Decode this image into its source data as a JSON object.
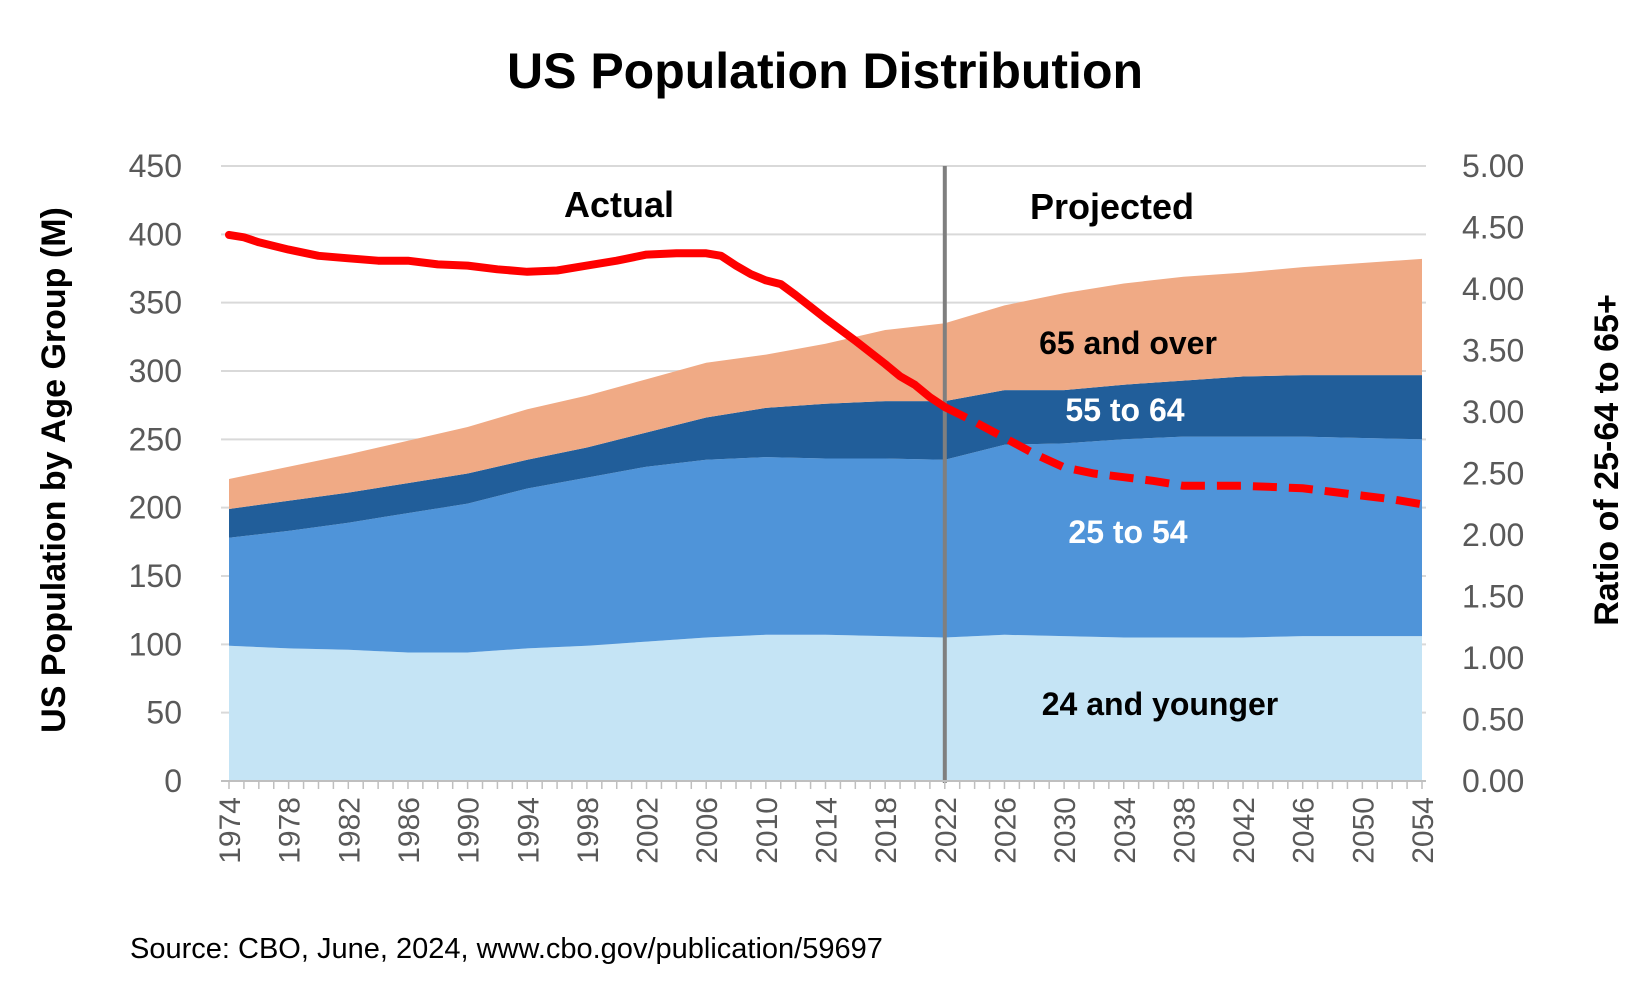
{
  "chart_data": {
    "type": "area",
    "title": "US Population Distribution",
    "ylabel_left": "US Population by Age Group (M)",
    "ylabel_right": "Ratio of 25-64 to 65+",
    "ylim_left": [
      0,
      450
    ],
    "ylim_right": [
      0,
      5
    ],
    "yticks_left": [
      "0",
      "50",
      "100",
      "150",
      "200",
      "250",
      "300",
      "350",
      "400",
      "450"
    ],
    "yticks_right": [
      "0.00",
      "0.50",
      "1.00",
      "1.50",
      "2.00",
      "2.50",
      "3.00",
      "3.50",
      "4.00",
      "4.50",
      "5.00"
    ],
    "x": [
      1974,
      1978,
      1982,
      1986,
      1990,
      1994,
      1998,
      2002,
      2006,
      2010,
      2014,
      2018,
      2022,
      2026,
      2030,
      2034,
      2038,
      2042,
      2046,
      2050,
      2054
    ],
    "xticks": [
      "1974",
      "1978",
      "1982",
      "1986",
      "1990",
      "1994",
      "1998",
      "2002",
      "2006",
      "2010",
      "2014",
      "2018",
      "2022",
      "2026",
      "2030",
      "2034",
      "2038",
      "2042",
      "2046",
      "2050",
      "2054"
    ],
    "stacked_series": [
      {
        "name": "24 and younger",
        "color": "#c5e4f5",
        "values": [
          99,
          97,
          96,
          94,
          94,
          97,
          99,
          102,
          105,
          107,
          107,
          106,
          105,
          107,
          106,
          105,
          105,
          105,
          106,
          106,
          106
        ]
      },
      {
        "name": "25 to 54",
        "color": "#4f94d9",
        "values": [
          79,
          86,
          93,
          102,
          109,
          117,
          123,
          128,
          130,
          130,
          129,
          130,
          130,
          139,
          141,
          145,
          147,
          147,
          146,
          145,
          144
        ]
      },
      {
        "name": "55 to 64",
        "color": "#215e9a",
        "values": [
          21,
          22,
          22,
          22,
          22,
          21,
          22,
          25,
          31,
          36,
          40,
          42,
          43,
          40,
          39,
          40,
          41,
          44,
          45,
          46,
          47
        ]
      },
      {
        "name": "65 and over",
        "color": "#f0aa85",
        "values": [
          22,
          25,
          28,
          31,
          34,
          37,
          38,
          39,
          40,
          39,
          44,
          52,
          57,
          62,
          71,
          74,
          76,
          76,
          79,
          82,
          85
        ]
      }
    ],
    "ratio_series": {
      "name": "Ratio of 25-64 to 65+",
      "color": "#ff0000",
      "x": [
        1974,
        1975,
        1976,
        1978,
        1980,
        1982,
        1984,
        1986,
        1988,
        1990,
        1992,
        1994,
        1996,
        1998,
        2000,
        2002,
        2004,
        2006,
        2007,
        2008,
        2009,
        2010,
        2011,
        2012,
        2014,
        2016,
        2018,
        2019,
        2020,
        2021,
        2022,
        2024,
        2026,
        2028,
        2030,
        2032,
        2034,
        2036,
        2038,
        2040,
        2042,
        2044,
        2046,
        2048,
        2050,
        2052,
        2054
      ],
      "values": [
        4.44,
        4.42,
        4.38,
        4.32,
        4.27,
        4.25,
        4.23,
        4.23,
        4.2,
        4.19,
        4.16,
        4.14,
        4.15,
        4.19,
        4.23,
        4.28,
        4.29,
        4.29,
        4.27,
        4.19,
        4.12,
        4.07,
        4.04,
        3.95,
        3.76,
        3.58,
        3.39,
        3.29,
        3.22,
        3.12,
        3.04,
        2.92,
        2.79,
        2.66,
        2.55,
        2.5,
        2.47,
        2.44,
        2.4,
        2.4,
        2.4,
        2.39,
        2.38,
        2.35,
        2.32,
        2.29,
        2.25
      ],
      "actual_until": 2022
    },
    "divider_year": 2022,
    "region_labels": {
      "actual": "Actual",
      "projected": "Projected"
    },
    "grid": true,
    "legend": "inline labels"
  },
  "source": "Source: CBO, June, 2024, www.cbo.gov/publication/59697"
}
